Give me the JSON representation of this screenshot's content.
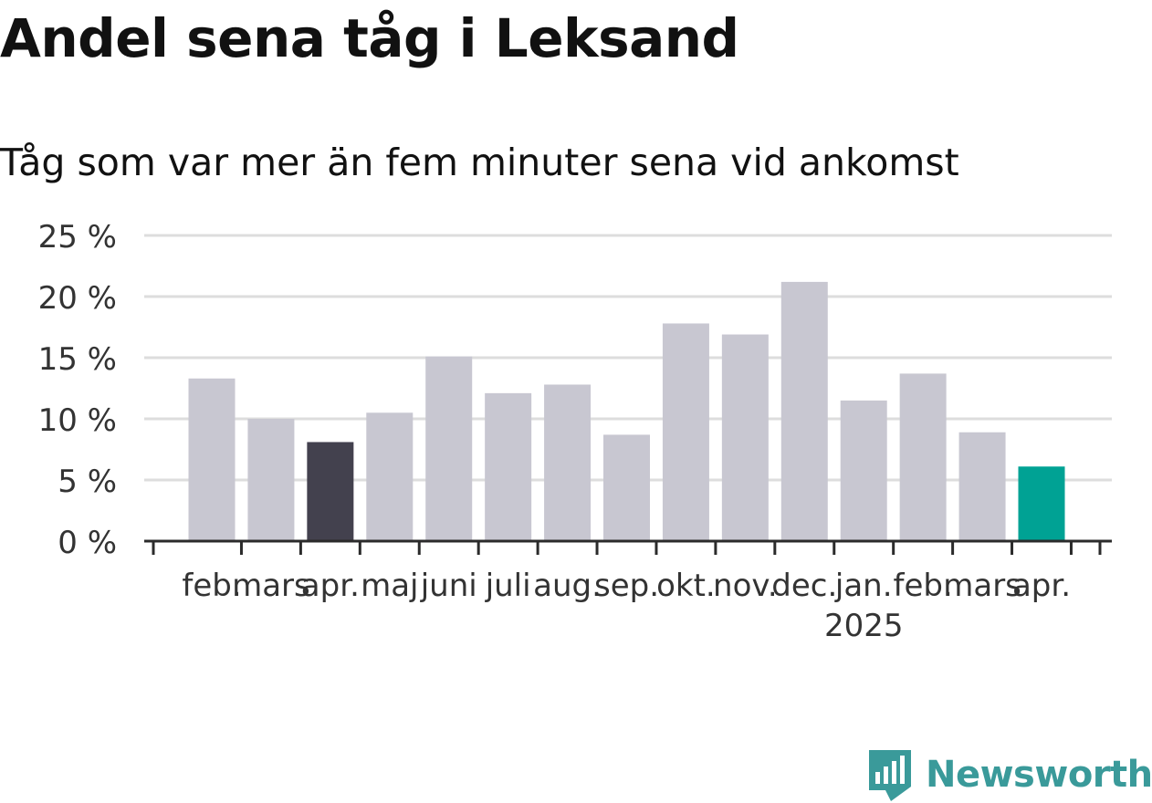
{
  "title": "Andel sena tåg i Leksand",
  "subtitle": "Tåg som var mer än fem minuter sena vid ankomst",
  "brand": {
    "name": "Newsworthy",
    "color": "#3a9a9a",
    "icon": "newsworthy-logo-icon"
  },
  "colors": {
    "default_bar": "#c8c7d1",
    "highlight_previous": "#43414e",
    "highlight_latest": "#00a294",
    "grid": "#dddddd",
    "axis": "#2b2b2b",
    "tick_text": "#333333"
  },
  "chart_data": {
    "type": "bar",
    "title": "Andel sena tåg i Leksand",
    "subtitle": "Tåg som var mer än fem minuter sena vid ankomst",
    "xlabel": "",
    "ylabel": "",
    "categories": [
      "feb.",
      "mars",
      "apr.",
      "maj",
      "juni",
      "juli",
      "aug.",
      "sep.",
      "okt.",
      "nov.",
      "dec.",
      "jan.",
      "feb.",
      "mars",
      "apr."
    ],
    "year_labels": [
      "",
      "",
      "",
      "",
      "",
      "",
      "",
      "",
      "",
      "",
      "",
      "2025",
      "",
      "",
      ""
    ],
    "values": [
      13.3,
      10.0,
      8.1,
      10.5,
      15.1,
      12.1,
      12.8,
      8.7,
      17.8,
      16.9,
      21.2,
      11.5,
      13.7,
      8.9,
      6.1
    ],
    "highlight": [
      "default",
      "default",
      "highlight_previous",
      "default",
      "default",
      "default",
      "default",
      "default",
      "default",
      "default",
      "default",
      "default",
      "default",
      "default",
      "highlight_latest"
    ],
    "yticks": [
      0,
      5,
      10,
      15,
      20,
      25
    ],
    "ytick_labels": [
      "0 %",
      "5 %",
      "10 %",
      "15 %",
      "20 %",
      "25 %"
    ],
    "ylim": [
      0,
      25
    ],
    "grid": true,
    "legend": "none"
  }
}
